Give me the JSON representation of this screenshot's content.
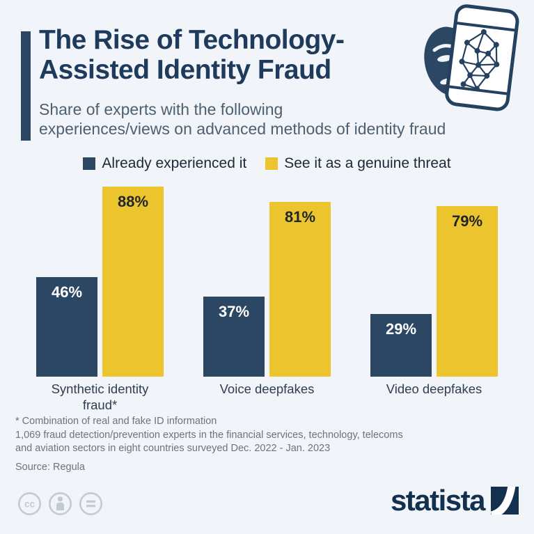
{
  "header": {
    "title_lines": [
      "The Rise of Technology-",
      "Assisted Identity Fraud"
    ],
    "subtitle_lines": [
      "Share of experts with the following",
      "experiences/views on advanced methods of identity fraud"
    ],
    "header_icon": "mask-smartphone-face-mesh-icon"
  },
  "chart_data": {
    "type": "bar",
    "categories": [
      "Synthetic identity fraud*",
      "Voice deepfakes",
      "Video deepfakes"
    ],
    "series": [
      {
        "name": "Already experienced it",
        "values": [
          46,
          37,
          29
        ],
        "color": "#2b4763",
        "label_color": "#ffffff"
      },
      {
        "name": "See it as a genuine threat",
        "values": [
          88,
          81,
          79
        ],
        "color": "#ecc52e",
        "label_color": "#20252b"
      }
    ],
    "value_suffix": "%",
    "ylim": [
      0,
      100
    ],
    "grid": false,
    "axes_shown": false,
    "legend_position": "top",
    "value_labels": "inside-top"
  },
  "footnotes": {
    "note": "* Combination of real and fake ID information",
    "methodology": "1,069 fraud detection/prevention experts in the financial services, technology, telecoms and aviation sectors in eight countries surveyed Dec. 2022 - Jan. 2023",
    "source": "Source: Regula"
  },
  "footer": {
    "license_icons": [
      "cc-icon",
      "attribution-icon",
      "equals-icon"
    ],
    "brand_name": "statista"
  },
  "colors": {
    "background": "#f1f4f8",
    "title": "#1e3a5c",
    "subtitle": "#4e5f70",
    "accent_bar": "#2b4763",
    "series_experienced": "#2b4763",
    "series_threat": "#ecc52e",
    "category_label": "#2f3e50",
    "footnote_text": "#6a7480",
    "brand_navy": "#13304e",
    "license_gray": "#c2cad4"
  }
}
